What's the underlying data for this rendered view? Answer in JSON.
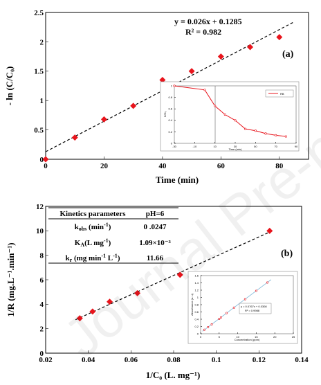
{
  "chart_data": [
    {
      "type": "scatter",
      "panel_label": "(a)",
      "xlabel": "Time (min)",
      "ylabel": "- ln (C/C₀)",
      "xlim": [
        0,
        90
      ],
      "ylim": [
        0,
        2.5
      ],
      "xticks": [
        "0",
        "20",
        "40",
        "60",
        "80"
      ],
      "yticks": [
        "0",
        "0.5",
        "1",
        "1.5",
        "2",
        "2.5"
      ],
      "x": [
        0,
        10,
        20,
        30,
        40,
        50,
        60,
        70,
        80
      ],
      "y": [
        0,
        0.37,
        0.68,
        0.91,
        1.35,
        1.5,
        1.75,
        1.91,
        2.08
      ],
      "fit": {
        "slope": 0.026,
        "intercept": 0.1285,
        "equation": "y = 0.026x + 0.1285",
        "r2": "R² = 0.982"
      },
      "marker_color": "#e8141c",
      "inset": {
        "type": "line",
        "ylabel": "C/C₀",
        "xlabel": "Time (min)",
        "legend": "RB",
        "xlim": [
          -30,
          90
        ],
        "ylim": [
          0,
          1
        ],
        "xticks": [
          "-30",
          "-10",
          "10",
          "30",
          "50",
          "70",
          "90"
        ],
        "yticks": [
          "0",
          "0.2",
          "0.4",
          "0.6",
          "0.8",
          "1"
        ],
        "x": [
          -30,
          0,
          10,
          20,
          30,
          40,
          50,
          60,
          70,
          80
        ],
        "y": [
          1.0,
          0.93,
          0.65,
          0.5,
          0.4,
          0.25,
          0.22,
          0.17,
          0.14,
          0.12
        ],
        "color": "#e8141c"
      }
    },
    {
      "type": "scatter",
      "panel_label": "(b)",
      "xlabel": "1/C₀ (L. mg⁻¹)",
      "ylabel": "1/R (mg.L⁻¹.min⁻¹)",
      "xlim": [
        0.02,
        0.14
      ],
      "ylim": [
        0,
        12
      ],
      "xticks": [
        "0.02",
        "0.04",
        "0.06",
        "0.08",
        "0.1",
        "0.12",
        "0.14"
      ],
      "yticks": [
        "0",
        "2",
        "4",
        "6",
        "8",
        "10",
        "12"
      ],
      "x": [
        0.036,
        0.042,
        0.05,
        0.063,
        0.083,
        0.125
      ],
      "y": [
        2.85,
        3.4,
        4.2,
        4.9,
        6.4,
        10.0
      ],
      "marker_color": "#e8141c",
      "table": {
        "header": [
          "Kinetics parameters",
          "pH=6"
        ],
        "rows": [
          [
            "k_obs (min⁻¹)",
            "0 .0247"
          ],
          [
            "K_A(L mg⁻¹)",
            "1.09×10⁻³"
          ],
          [
            "k_r (mg min⁻¹ L⁻¹)",
            "11.66"
          ]
        ]
      },
      "inset": {
        "type": "scatter",
        "ylabel": "Absorbance (a. u)",
        "xlabel": "Concentration (ppm)",
        "equation": "y = 0.0767x + 0.0308",
        "r2": "R² = 0.9988",
        "xlim": [
          0,
          25
        ],
        "ylim": [
          0,
          1.6
        ],
        "xticks": [
          "0",
          "5",
          "10",
          "15",
          "20",
          "25"
        ],
        "yticks": [
          "0",
          "0.2",
          "0.4",
          "0.6",
          "0.8",
          "1",
          "1.2",
          "1.4",
          "1.6"
        ],
        "x": [
          1,
          2,
          3,
          5,
          5.5,
          7,
          9,
          12,
          15,
          18
        ],
        "y": [
          0.11,
          0.18,
          0.26,
          0.41,
          0.45,
          0.57,
          0.72,
          0.95,
          1.18,
          1.41
        ],
        "color": "#e8141c",
        "line_color": "#7fb8d8"
      }
    }
  ],
  "watermark": "Journal Pre-proof"
}
